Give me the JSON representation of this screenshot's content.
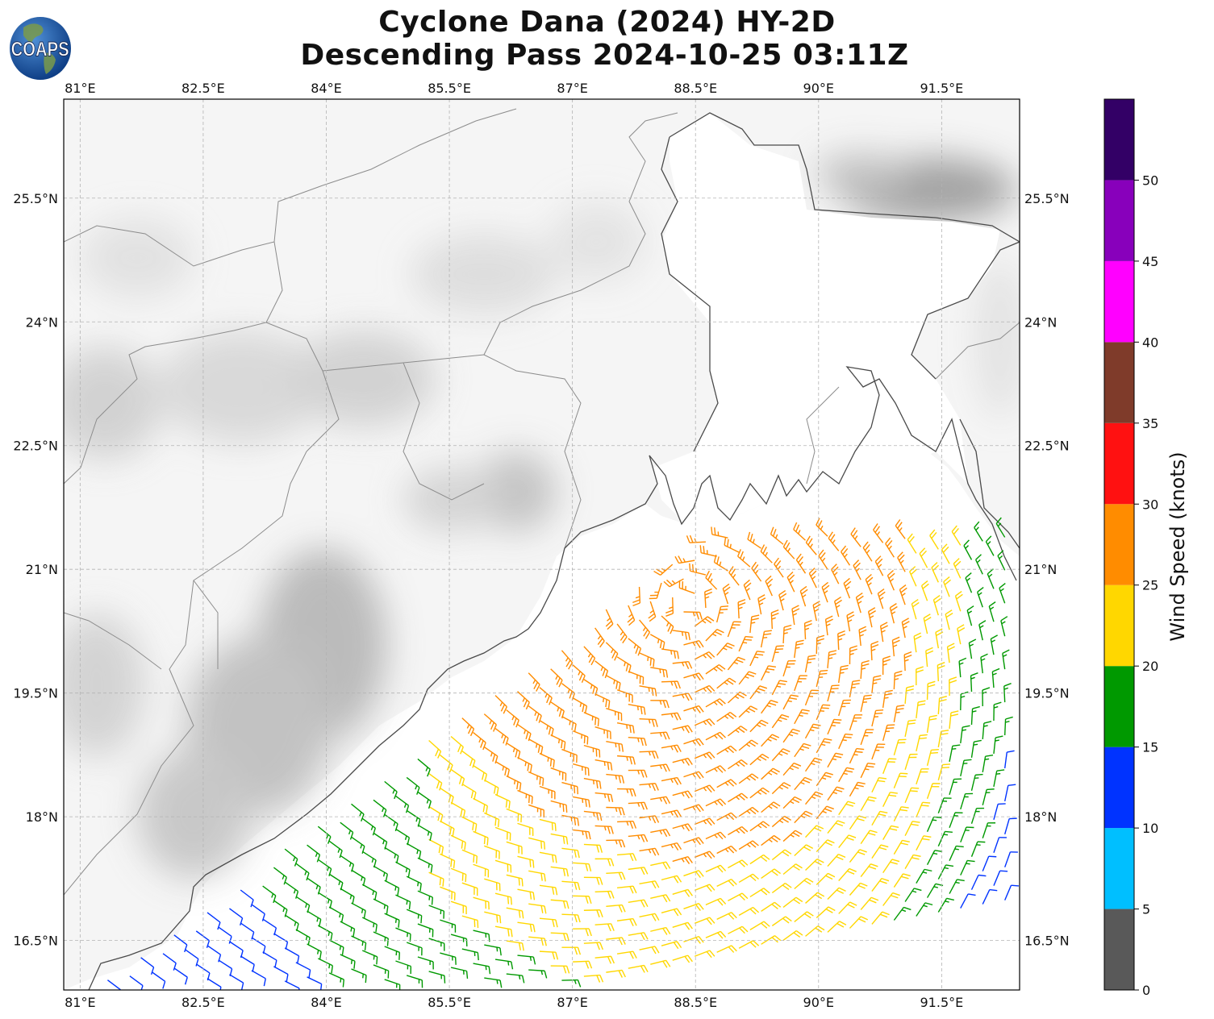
{
  "title": {
    "line1": "Cyclone Dana (2024) HY-2D",
    "line2": "Descending Pass 2024-10-25 03:11Z"
  },
  "logo": {
    "text": "COAPS",
    "icon": "globe-logo"
  },
  "map": {
    "projection": "PlateCarree",
    "lon_range": [
      80.8,
      92.45
    ],
    "lat_range": [
      15.9,
      26.7
    ],
    "lon_ticks": [
      {
        "value": 81.0,
        "label": "81°E"
      },
      {
        "value": 82.5,
        "label": "82.5°E"
      },
      {
        "value": 84.0,
        "label": "84°E"
      },
      {
        "value": 85.5,
        "label": "85.5°E"
      },
      {
        "value": 87.0,
        "label": "87°E"
      },
      {
        "value": 88.5,
        "label": "88.5°E"
      },
      {
        "value": 90.0,
        "label": "90°E"
      },
      {
        "value": 91.5,
        "label": "91.5°E"
      }
    ],
    "lat_ticks": [
      {
        "value": 16.5,
        "label": "16.5°N"
      },
      {
        "value": 18.0,
        "label": "18°N"
      },
      {
        "value": 19.5,
        "label": "19.5°N"
      },
      {
        "value": 21.0,
        "label": "21°N"
      },
      {
        "value": 22.5,
        "label": "22.5°N"
      },
      {
        "value": 24.0,
        "label": "24°N"
      },
      {
        "value": 25.5,
        "label": "25.5°N"
      }
    ],
    "gridlines": "dashed",
    "land_shading": "grayscale topography",
    "wind_barbs": "HY-2D scatterometer wind barbs colored by speed"
  },
  "colorbar": {
    "label": "Wind Speed (knots)",
    "range": [
      0,
      55
    ],
    "ticks": [
      0,
      5,
      10,
      15,
      20,
      25,
      30,
      35,
      40,
      45,
      50
    ],
    "bins": [
      {
        "from": 0,
        "to": 5,
        "color": "#595959"
      },
      {
        "from": 5,
        "to": 10,
        "color": "#00bfff"
      },
      {
        "from": 10,
        "to": 15,
        "color": "#0033ff"
      },
      {
        "from": 15,
        "to": 20,
        "color": "#009900"
      },
      {
        "from": 20,
        "to": 25,
        "color": "#ffd700"
      },
      {
        "from": 25,
        "to": 30,
        "color": "#ff8c00"
      },
      {
        "from": 30,
        "to": 35,
        "color": "#ff1111"
      },
      {
        "from": 35,
        "to": 40,
        "color": "#7f3b2a"
      },
      {
        "from": 40,
        "to": 45,
        "color": "#ff00ff"
      },
      {
        "from": 45,
        "to": 50,
        "color": "#8800bb"
      },
      {
        "from": 50,
        "to": 55,
        "color": "#330066"
      }
    ]
  },
  "chart_data": {
    "type": "wind_barb_map",
    "title": "Cyclone Dana (2024) HY-2D / Descending Pass 2024-10-25 03:11Z",
    "units": "knots",
    "speed_bands_observed": [
      {
        "range": [
          10,
          15
        ],
        "color": "#0033ff",
        "region": "southwest coastal band and eastern swath edge"
      },
      {
        "range": [
          15,
          20
        ],
        "color": "#009900",
        "region": "outer swath, south and east"
      },
      {
        "range": [
          20,
          25
        ],
        "color": "#ffd700",
        "region": "central swath band near 19-21.5N"
      },
      {
        "range": [
          25,
          30
        ],
        "color": "#ff8c00",
        "region": "north-central core near 20-21.3N, 87.5-90E"
      }
    ]
  }
}
